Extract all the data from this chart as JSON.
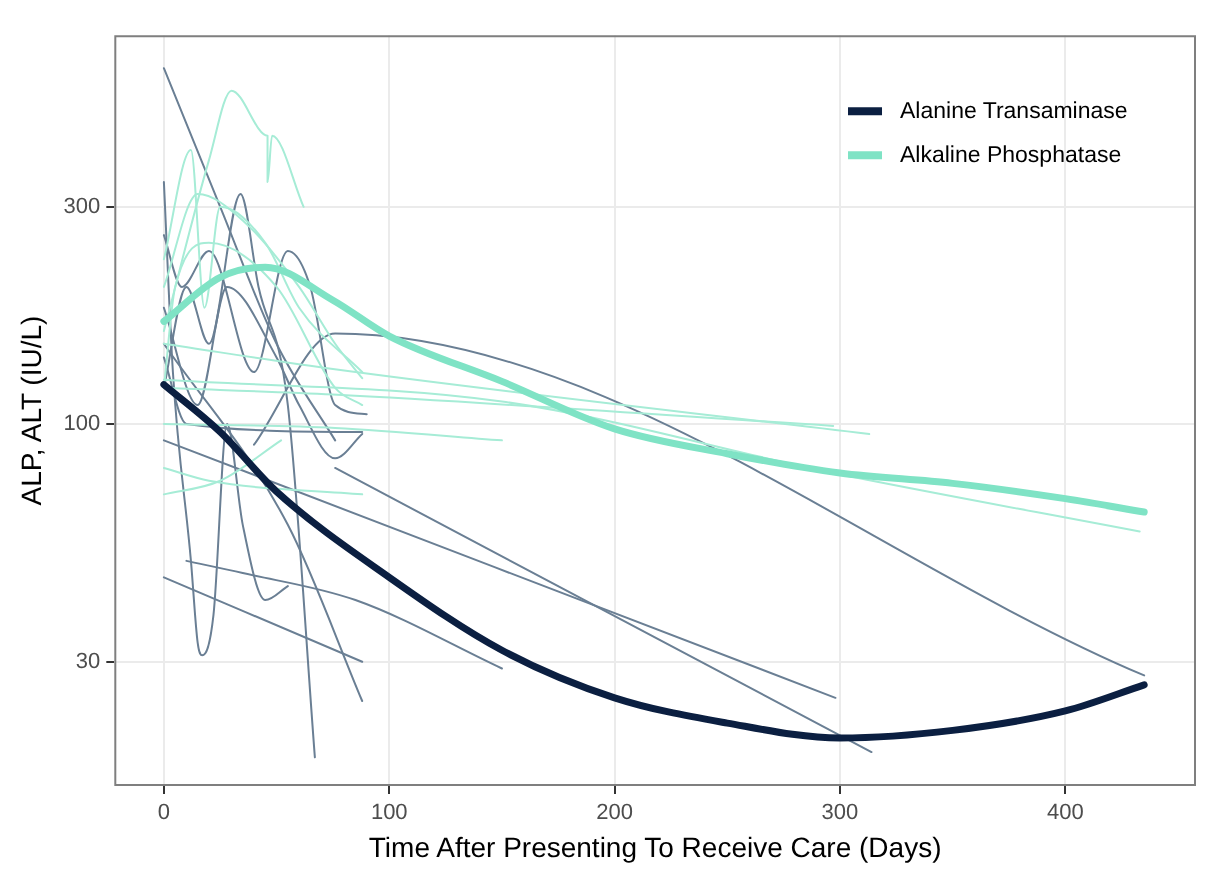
{
  "chart_data": {
    "type": "line",
    "xlabel": "Time After Presenting To Receive Care (Days)",
    "ylabel": "ALP, ALT (IU/L)",
    "log": "y",
    "grid": true,
    "legend": "top right",
    "xlim": [
      -22,
      458
    ],
    "xticks": [
      0,
      100,
      200,
      300,
      400
    ],
    "ylim": [
      16,
      715
    ],
    "yticks": [
      30,
      100,
      300
    ],
    "series": [
      {
        "color": "#a6ecd6",
        "x": [
          0,
          20,
          30,
          46,
          46,
          48,
          62
        ],
        "values": [
          160,
          380,
          540,
          430,
          340,
          430,
          300
        ]
      },
      {
        "color": "#a6ecd6",
        "x": [
          0,
          12,
          18,
          25,
          45,
          60,
          88
        ],
        "values": [
          230,
          400,
          180,
          300,
          250,
          180,
          130
        ]
      },
      {
        "color": "#a6ecd6",
        "x": [
          0,
          15,
          35,
          60,
          76,
          88
        ],
        "values": [
          200,
          320,
          280,
          200,
          150,
          126
        ]
      },
      {
        "color": "#a6ecd6",
        "x": [
          0,
          5,
          20,
          50,
          76,
          88
        ],
        "values": [
          120,
          200,
          250,
          200,
          120,
          110
        ]
      },
      {
        "color": "#a6ecd6",
        "x": [
          0,
          75,
          313
        ],
        "values": [
          150,
          132,
          95
        ]
      },
      {
        "color": "#a6ecd6",
        "x": [
          0,
          75,
          297
        ],
        "values": [
          120,
          116,
          99
        ]
      },
      {
        "color": "#a6ecd6",
        "x": [
          0,
          76,
          150
        ],
        "values": [
          100,
          98,
          92
        ]
      },
      {
        "color": "#a6ecd6",
        "x": [
          0,
          25,
          52
        ],
        "values": [
          70,
          75,
          92
        ]
      },
      {
        "color": "#a6ecd6",
        "x": [
          0,
          20,
          88
        ],
        "values": [
          80,
          75,
          70
        ]
      },
      {
        "color": "#a6ecd6",
        "x": [
          0,
          150,
          297,
          433
        ],
        "values": [
          125,
          112,
          78,
          58
        ]
      },
      {
        "color": "#6a7f94",
        "x": [
          0,
          25,
          50,
          76
        ],
        "values": [
          605,
          300,
          150,
          92
        ]
      },
      {
        "color": "#6a7f94",
        "x": [
          0,
          4,
          12,
          15,
          17,
          22,
          28,
          35,
          45,
          55
        ],
        "values": [
          340,
          130,
          50,
          33,
          31,
          38,
          100,
          60,
          41,
          44
        ]
      },
      {
        "color": "#6a7f94",
        "x": [
          0,
          10,
          20,
          34,
          42,
          55,
          67
        ],
        "values": [
          120,
          200,
          150,
          320,
          200,
          110,
          18.5
        ]
      },
      {
        "color": "#6a7f94",
        "x": [
          0,
          298
        ],
        "values": [
          92,
          25
        ]
      },
      {
        "color": "#6a7f94",
        "x": [
          76,
          314
        ],
        "values": [
          80,
          19
        ]
      },
      {
        "color": "#6a7f94",
        "x": [
          40,
          76,
          435
        ],
        "values": [
          90,
          158,
          28
        ]
      },
      {
        "color": "#6a7f94",
        "x": [
          0,
          88
        ],
        "values": [
          46,
          30
        ]
      },
      {
        "color": "#6a7f94",
        "x": [
          10,
          35,
          85,
          150
        ],
        "values": [
          50,
          47,
          41,
          29
        ]
      },
      {
        "color": "#6a7f94",
        "x": [
          0,
          55,
          88
        ],
        "values": [
          150,
          60,
          24.6
        ]
      },
      {
        "color": "#6a7f94",
        "x": [
          0,
          10,
          88
        ],
        "values": [
          140,
          100,
          96
        ]
      },
      {
        "color": "#6a7f94",
        "x": [
          0,
          15,
          28,
          50,
          60,
          76,
          88
        ],
        "values": [
          180,
          110,
          200,
          140,
          110,
          84,
          95
        ]
      },
      {
        "color": "#6a7f94",
        "x": [
          0,
          8,
          20,
          40,
          55,
          65,
          76,
          90
        ],
        "values": [
          260,
          200,
          240,
          130,
          240,
          200,
          110,
          105
        ]
      },
      {
        "name": "Alanine Transaminase",
        "color": "#0b1f41",
        "x": [
          0,
          25,
          50,
          100,
          150,
          200,
          250,
          300,
          350,
          400,
          435
        ],
        "values": [
          122,
          96,
          71,
          46,
          31.8,
          25,
          22,
          20.4,
          21.2,
          23.4,
          26.7
        ]
      },
      {
        "name": "Alkaline Phosphatase",
        "color": "#7fe3c5",
        "x": [
          0,
          25,
          45,
          75,
          100,
          150,
          200,
          250,
          300,
          350,
          400,
          435
        ],
        "values": [
          168,
          210,
          221,
          187,
          156,
          124,
          97.5,
          86,
          78,
          74,
          68.5,
          64
        ]
      }
    ]
  }
}
